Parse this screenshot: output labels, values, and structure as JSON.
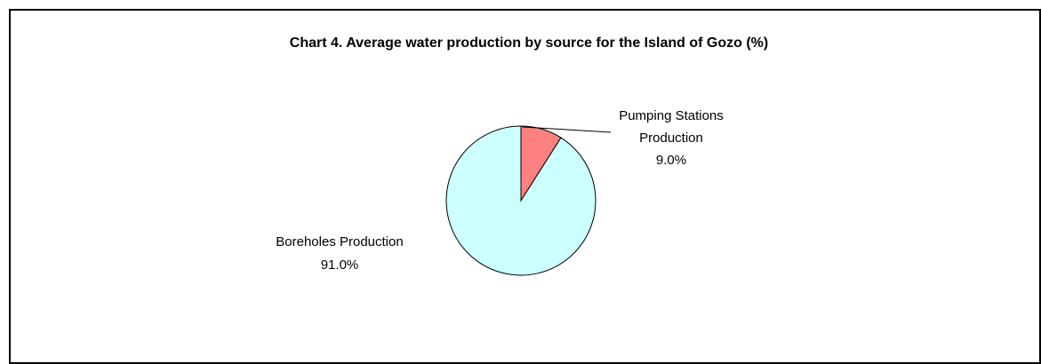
{
  "chart_data": {
    "type": "pie",
    "title": "Chart 4.  Average water production by source for the Island of Gozo (%)",
    "slices": [
      {
        "label_lines": [
          "Pumping Stations",
          "Production"
        ],
        "value": 9.0,
        "value_label": "9.0%",
        "color": "#ff8080"
      },
      {
        "label_lines": [
          "Boreholes Production"
        ],
        "value": 91.0,
        "value_label": "91.0%",
        "color": "#ccffff"
      }
    ],
    "legend": "none",
    "border_color": "#000000"
  }
}
